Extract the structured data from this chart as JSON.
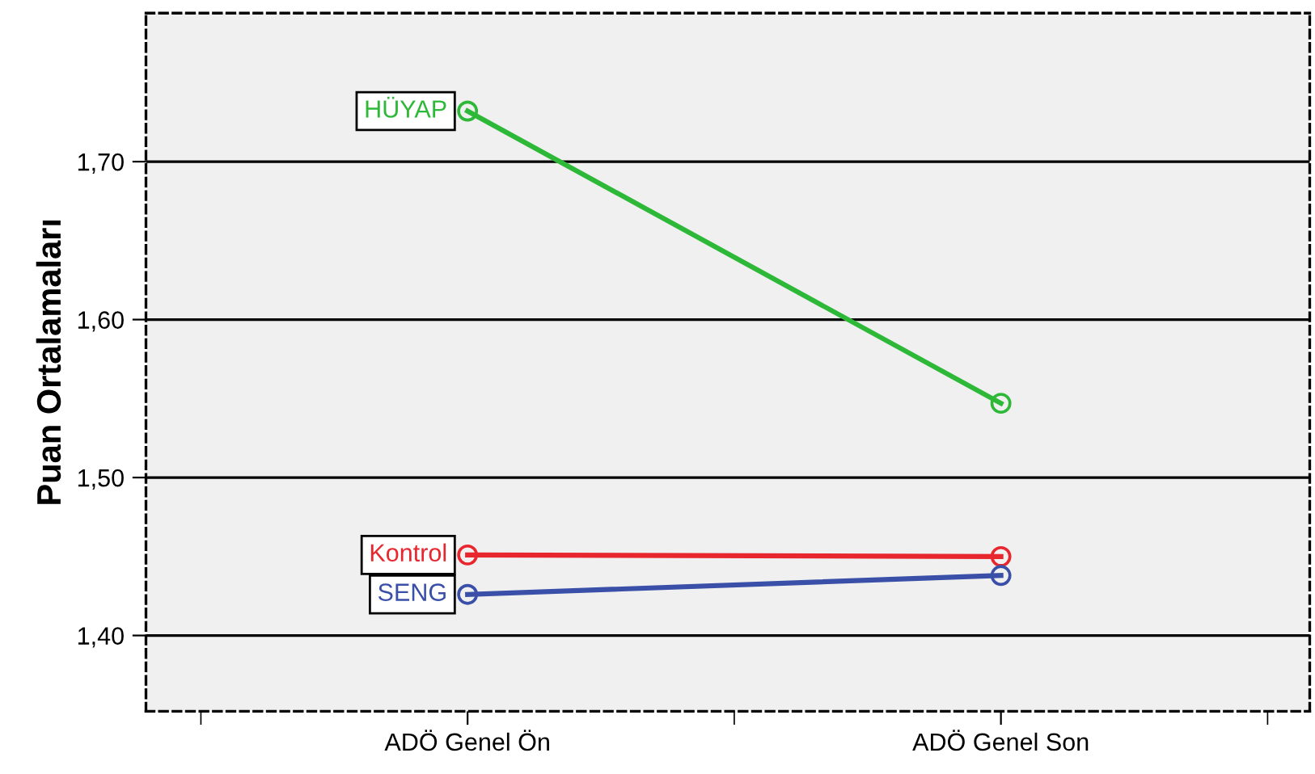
{
  "chart_data": {
    "type": "line",
    "ylabel": "Puan Ortalamaları",
    "categories": [
      "ADÖ Genel Ön",
      "ADÖ Genel Son"
    ],
    "series": [
      {
        "name": "HÜYAP",
        "color": "#2db838",
        "values": [
          1.732,
          1.547
        ]
      },
      {
        "name": "Kontrol",
        "color": "#e8262e",
        "values": [
          1.451,
          1.45
        ]
      },
      {
        "name": "SENG",
        "color": "#3a4fa8",
        "values": [
          1.426,
          1.438
        ]
      }
    ],
    "ylim": [
      1.352,
      1.794
    ],
    "yticks": [
      {
        "value": 1.4,
        "label": "1,40"
      },
      {
        "value": 1.5,
        "label": "1,50"
      },
      {
        "value": 1.6,
        "label": "1,60"
      },
      {
        "value": 1.7,
        "label": "1,70"
      }
    ],
    "grid": "y",
    "legend": false,
    "marker": "circle",
    "line_style": "solid"
  }
}
